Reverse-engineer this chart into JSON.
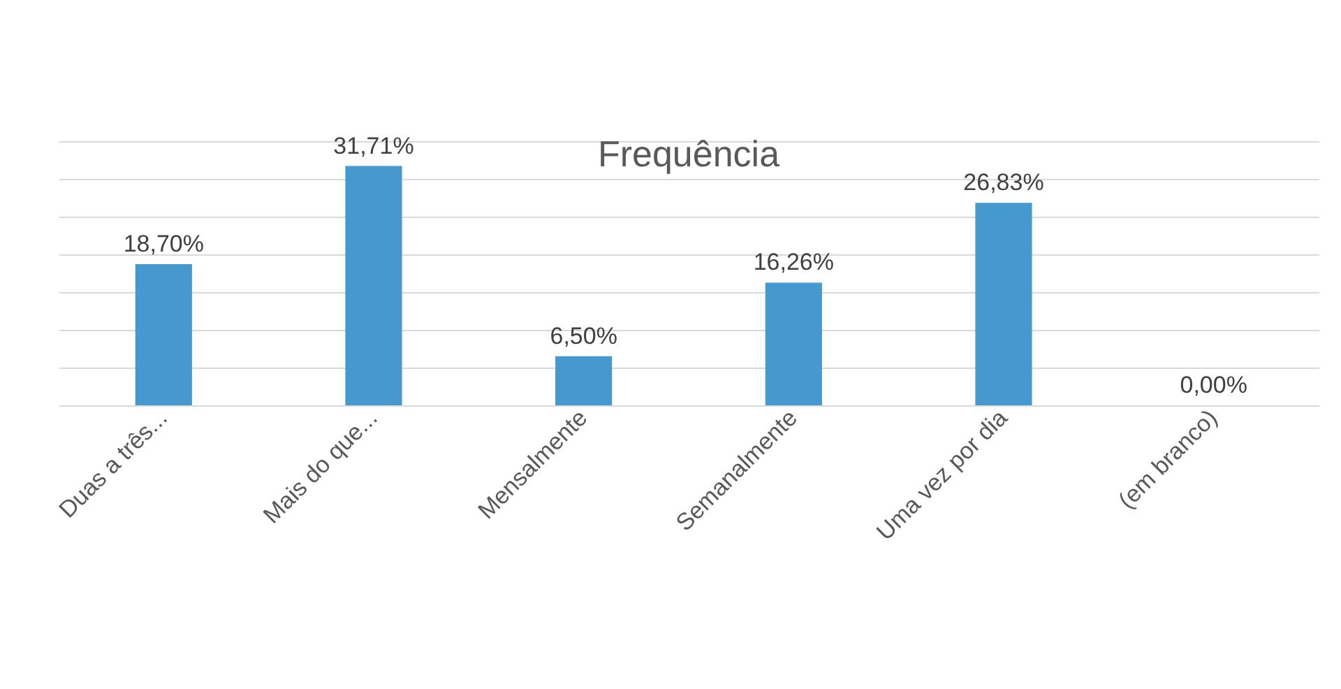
{
  "chart_data": {
    "type": "bar",
    "title": "Frequência",
    "categories": [
      "Duas a três...",
      "Mais do que...",
      "Mensalmente",
      "Semanalmente",
      "Uma vez por dia",
      "(em branco)"
    ],
    "values": [
      18.7,
      31.71,
      6.5,
      16.26,
      26.83,
      0.0
    ],
    "value_labels": [
      "18,70%",
      "31,71%",
      "6,50%",
      "16,26%",
      "26,83%",
      "0,00%"
    ],
    "color": "#4599cf",
    "tick_labels": "x",
    "grid": "y"
  }
}
